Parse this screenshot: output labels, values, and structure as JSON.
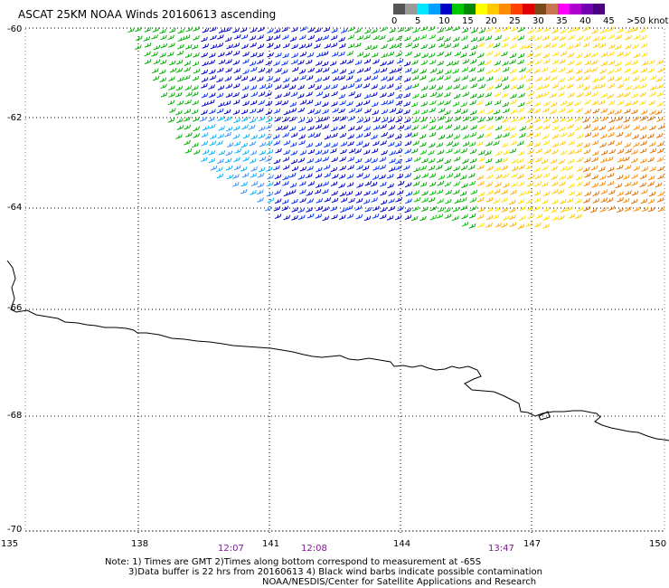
{
  "header": {
    "title": "ASCAT 25KM NOAA Winds 20160613 ascending"
  },
  "legend": {
    "colors": [
      "#555555",
      "#9a9a9a",
      "#00e8ff",
      "#00a0ff",
      "#0000c8",
      "#00c800",
      "#008800",
      "#ffff00",
      "#ffc800",
      "#ff8c00",
      "#ff4000",
      "#e00000",
      "#7a4a1a",
      "#c87850",
      "#ff00ff",
      "#b000d0",
      "#7000b0",
      "#4b0082"
    ],
    "labels": [
      "0",
      "5",
      "10",
      "15",
      "20",
      "25",
      "30",
      "35",
      "40",
      "45",
      ">50 knots"
    ]
  },
  "axes": {
    "lat_labels": [
      "-60",
      "-62",
      "-64",
      "-66",
      "-68",
      "-70"
    ],
    "lon_labels": [
      "135",
      "138",
      "141",
      "144",
      "147",
      "150"
    ]
  },
  "times": [
    "12:07",
    "12:08",
    "13:47"
  ],
  "notes": [
    "Note: 1) Times are GMT 2)Times along bottom correspond to measurement at -65S",
    "3)Data buffer is 22 hrs from 20160613 4) Black wind barbs indicate possible contamination",
    "NOAA/NESDIS/Center for Satellite Applications and Research"
  ]
}
